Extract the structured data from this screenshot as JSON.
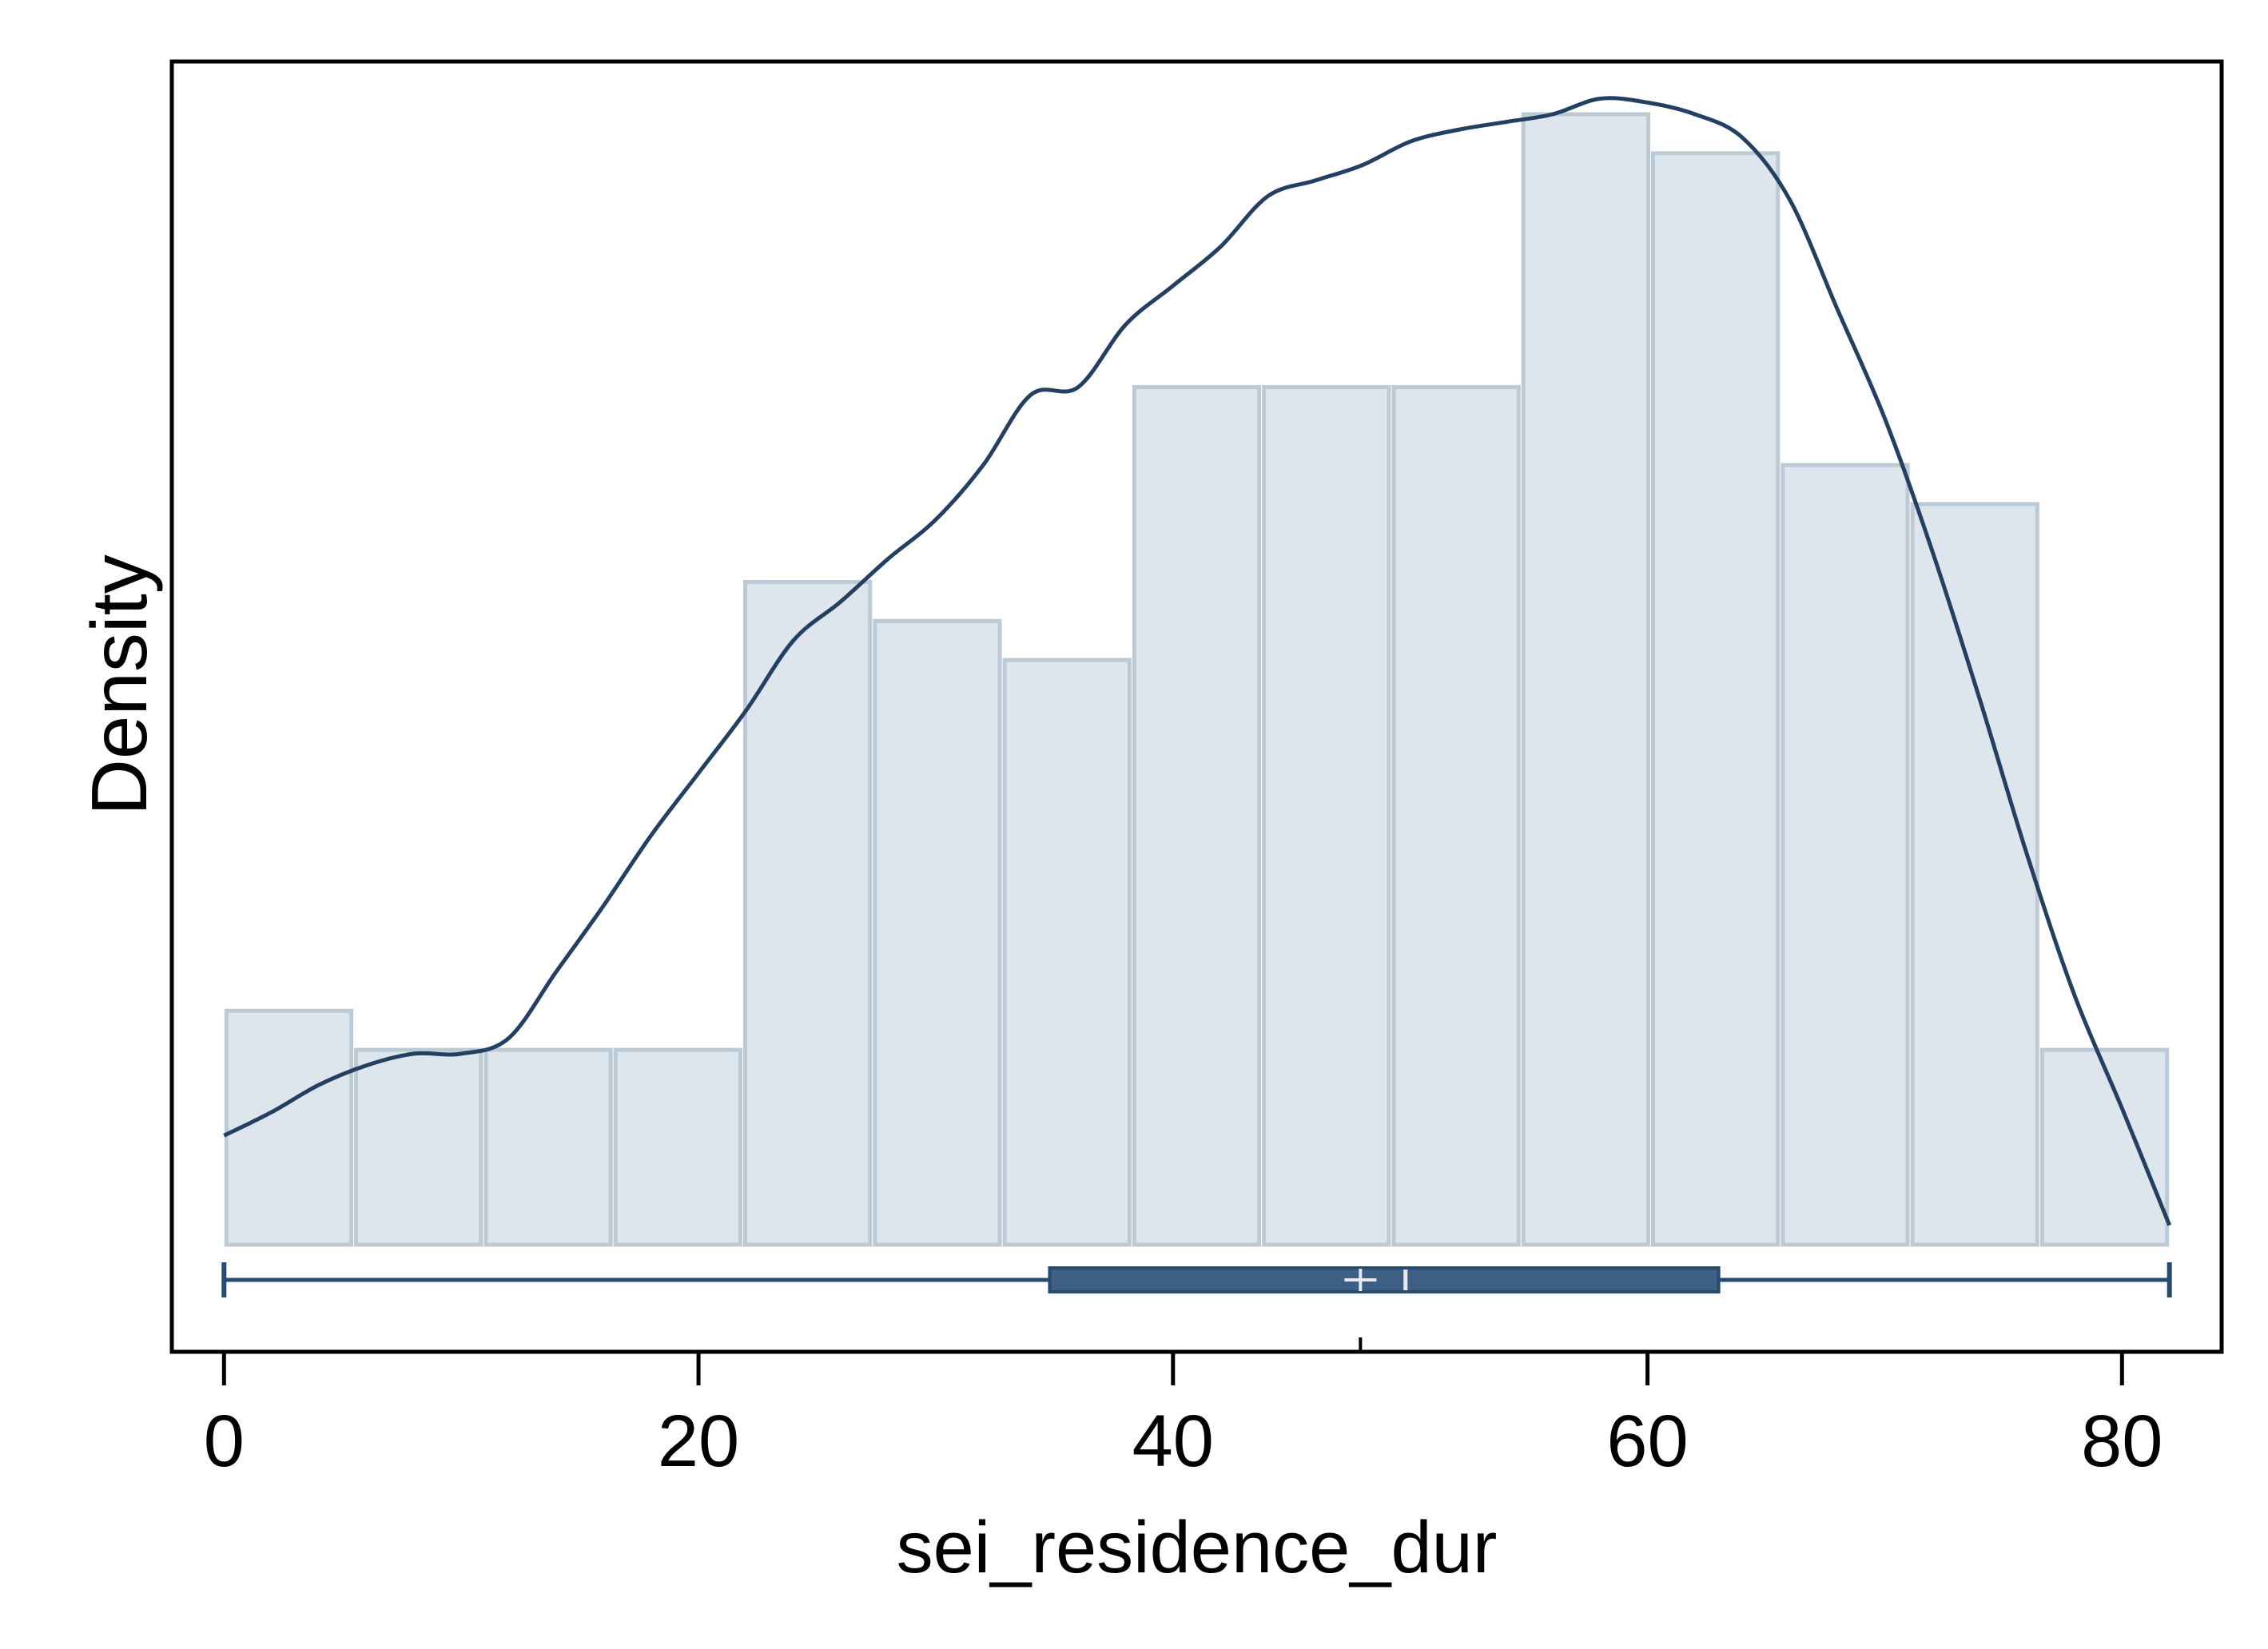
{
  "chart_data": {
    "type": "histogram",
    "title": "",
    "xlabel": "sei_residence_dur",
    "ylabel": "Density",
    "x_ticks": [
      0,
      20,
      40,
      60,
      80
    ],
    "xlim": [
      -2.2,
      84.2
    ],
    "y_ticks_shown": false,
    "ylim_relative": [
      0,
      29
    ],
    "bins": {
      "edges": [
        0,
        5.467,
        10.933,
        16.4,
        21.867,
        27.333,
        32.8,
        38.267,
        43.733,
        49.2,
        54.667,
        60.133,
        65.6,
        71.067,
        76.533,
        82
      ],
      "relative_heights": [
        6,
        5,
        5,
        5,
        17,
        16,
        15,
        22,
        22,
        22,
        29,
        28,
        20,
        19,
        5
      ]
    },
    "density_curve": {
      "x": [
        0,
        2,
        4,
        6,
        8,
        10,
        12,
        14,
        16,
        18,
        20,
        22,
        24,
        26,
        28,
        30,
        32,
        34,
        36,
        38,
        40,
        42,
        44,
        46,
        48,
        50,
        52,
        54,
        56,
        58,
        60,
        62,
        64,
        66,
        68,
        70,
        72,
        74,
        76,
        78,
        80,
        82
      ],
      "relative_y": [
        2.8,
        3.4,
        4.1,
        4.6,
        4.9,
        4.9,
        5.3,
        7.0,
        8.7,
        10.5,
        12.1,
        13.7,
        15.5,
        16.5,
        17.6,
        18.6,
        20.0,
        21.8,
        22.0,
        23.6,
        24.6,
        25.6,
        26.9,
        27.3,
        27.7,
        28.3,
        28.6,
        28.8,
        29.0,
        29.4,
        29.3,
        29.0,
        28.4,
        26.8,
        24.0,
        21.2,
        17.8,
        14.0,
        10.0,
        6.4,
        3.5,
        0.5
      ]
    },
    "boxplot": {
      "whisker_low": 0,
      "q1": 34.8,
      "median": 49.8,
      "mean": 47.9,
      "q3": 63,
      "whisker_high": 82
    },
    "colors": {
      "bar_fill": "#dde5ed",
      "bar_stroke": "#bccad6",
      "curve": "#233f62",
      "box": "#3e5f84",
      "box_stroke": "#274a70",
      "frame": "#000000"
    },
    "grid": false,
    "legend": "none"
  }
}
